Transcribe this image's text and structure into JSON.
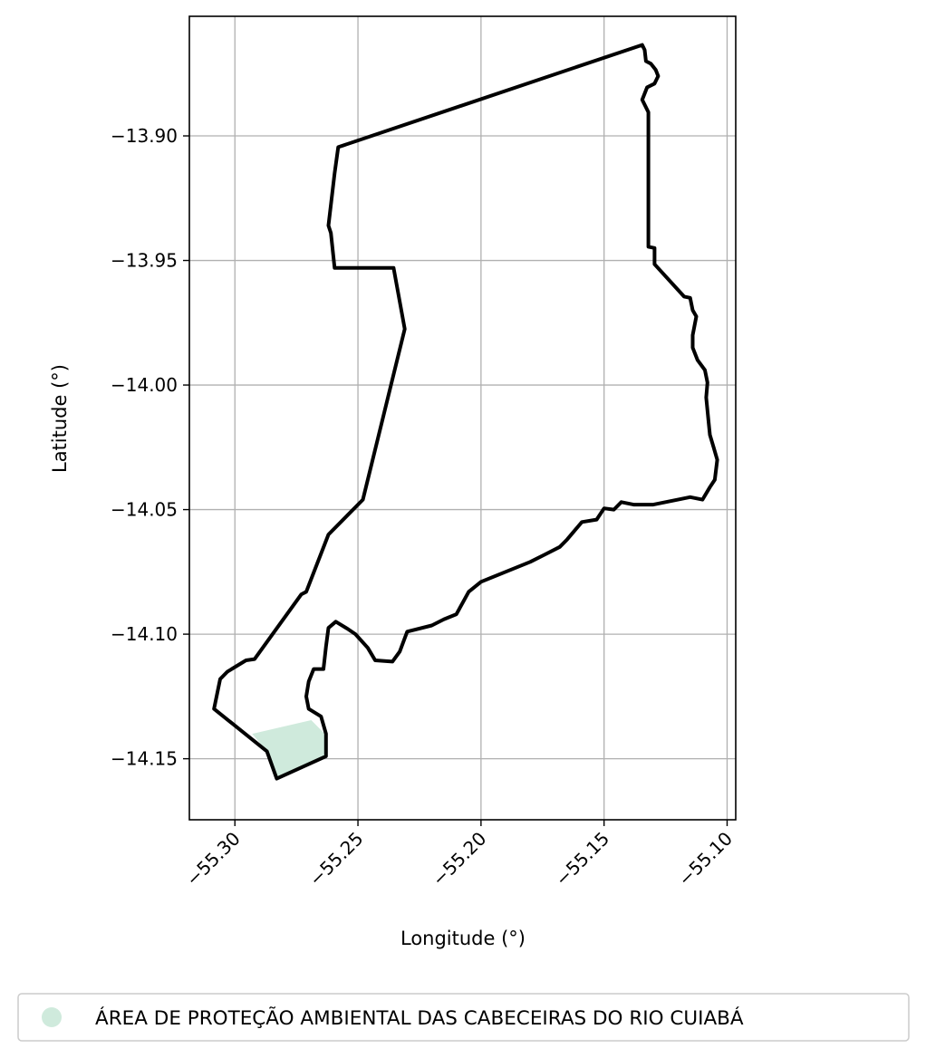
{
  "chart_data": {
    "type": "map",
    "xlabel": "Longitude (°)",
    "ylabel": "Latitude (°)",
    "xlim": [
      -55.3185,
      -55.0965
    ],
    "ylim": [
      -14.1745,
      -13.852
    ],
    "grid": true,
    "x_ticks": [
      -55.3,
      -55.25,
      -55.2,
      -55.15,
      -55.1
    ],
    "x_tick_labels": [
      "−55.30",
      "−55.25",
      "−55.20",
      "−55.15",
      "−55.10"
    ],
    "y_ticks": [
      -13.9,
      -13.95,
      -14.0,
      -14.05,
      -14.1,
      -14.15
    ],
    "y_tick_labels": [
      "−13.90",
      "−13.95",
      "−14.00",
      "−14.05",
      "−14.10",
      "−14.15"
    ],
    "boundary_color": "#000000",
    "fill_color": "#cfeadc",
    "legend": {
      "placement": "below",
      "entries": [
        {
          "label": "ÁREA DE PROTEÇÃO AMBIENTAL DAS CABECEIRAS DO RIO CUIABÁ",
          "color": "#cfeadc"
        }
      ]
    },
    "boundary": [
      [
        -55.258,
        -13.9045
      ],
      [
        -55.1345,
        -13.8635
      ],
      [
        -55.1335,
        -13.8655
      ],
      [
        -55.133,
        -13.87
      ],
      [
        -55.131,
        -13.871
      ],
      [
        -55.129,
        -13.8735
      ],
      [
        -55.128,
        -13.876
      ],
      [
        -55.1295,
        -13.879
      ],
      [
        -55.1325,
        -13.8805
      ],
      [
        -55.1345,
        -13.8855
      ],
      [
        -55.132,
        -13.8905
      ],
      [
        -55.132,
        -13.93
      ],
      [
        -55.132,
        -13.9445
      ],
      [
        -55.1295,
        -13.945
      ],
      [
        -55.1295,
        -13.9515
      ],
      [
        -55.1175,
        -13.9645
      ],
      [
        -55.115,
        -13.965
      ],
      [
        -55.114,
        -13.97
      ],
      [
        -55.1125,
        -13.9725
      ],
      [
        -55.114,
        -13.98
      ],
      [
        -55.114,
        -13.985
      ],
      [
        -55.112,
        -13.99
      ],
      [
        -55.109,
        -13.994
      ],
      [
        -55.108,
        -13.999
      ],
      [
        -55.1085,
        -14.005
      ],
      [
        -55.1075,
        -14.015
      ],
      [
        -55.107,
        -14.02
      ],
      [
        -55.1055,
        -14.025
      ],
      [
        -55.104,
        -14.03
      ],
      [
        -55.105,
        -14.038
      ],
      [
        -55.107,
        -14.041
      ],
      [
        -55.11,
        -14.046
      ],
      [
        -55.115,
        -14.045
      ],
      [
        -55.12,
        -14.046
      ],
      [
        -55.125,
        -14.047
      ],
      [
        -55.13,
        -14.048
      ],
      [
        -55.138,
        -14.048
      ],
      [
        -55.143,
        -14.047
      ],
      [
        -55.146,
        -14.05
      ],
      [
        -55.15,
        -14.0495
      ],
      [
        -55.153,
        -14.054
      ],
      [
        -55.159,
        -14.055
      ],
      [
        -55.165,
        -14.062
      ],
      [
        -55.168,
        -14.065
      ],
      [
        -55.174,
        -14.068
      ],
      [
        -55.18,
        -14.071
      ],
      [
        -55.185,
        -14.073
      ],
      [
        -55.19,
        -14.075
      ],
      [
        -55.2,
        -14.079
      ],
      [
        -55.205,
        -14.083
      ],
      [
        -55.21,
        -14.092
      ],
      [
        -55.215,
        -14.094
      ],
      [
        -55.22,
        -14.0965
      ],
      [
        -55.23,
        -14.099
      ],
      [
        -55.233,
        -14.107
      ],
      [
        -55.236,
        -14.111
      ],
      [
        -55.243,
        -14.1105
      ],
      [
        -55.246,
        -14.1055
      ],
      [
        -55.251,
        -14.1
      ],
      [
        -55.254,
        -14.098
      ],
      [
        -55.259,
        -14.095
      ],
      [
        -55.262,
        -14.0975
      ],
      [
        -55.263,
        -14.105
      ],
      [
        -55.264,
        -14.114
      ],
      [
        -55.268,
        -14.114
      ],
      [
        -55.27,
        -14.119
      ],
      [
        -55.271,
        -14.125
      ],
      [
        -55.27,
        -14.13
      ],
      [
        -55.265,
        -14.133
      ],
      [
        -55.263,
        -14.14
      ],
      [
        -55.263,
        -14.149
      ],
      [
        -55.283,
        -14.158
      ],
      [
        -55.287,
        -14.147
      ],
      [
        -55.3085,
        -14.13
      ],
      [
        -55.306,
        -14.118
      ],
      [
        -55.303,
        -14.115
      ],
      [
        -55.2955,
        -14.1105
      ],
      [
        -55.292,
        -14.11
      ],
      [
        -55.273,
        -14.084
      ],
      [
        -55.271,
        -14.083
      ],
      [
        -55.262,
        -14.06
      ],
      [
        -55.248,
        -14.046
      ],
      [
        -55.231,
        -13.9775
      ],
      [
        -55.2355,
        -13.953
      ],
      [
        -55.2595,
        -13.953
      ],
      [
        -55.261,
        -13.939
      ],
      [
        -55.262,
        -13.936
      ],
      [
        -55.2595,
        -13.915
      ]
    ],
    "filled_region": [
      [
        -55.293,
        -14.14
      ],
      [
        -55.269,
        -14.1345
      ],
      [
        -55.2625,
        -14.141
      ],
      [
        -55.263,
        -14.149
      ],
      [
        -55.283,
        -14.158
      ],
      [
        -55.287,
        -14.147
      ]
    ]
  }
}
